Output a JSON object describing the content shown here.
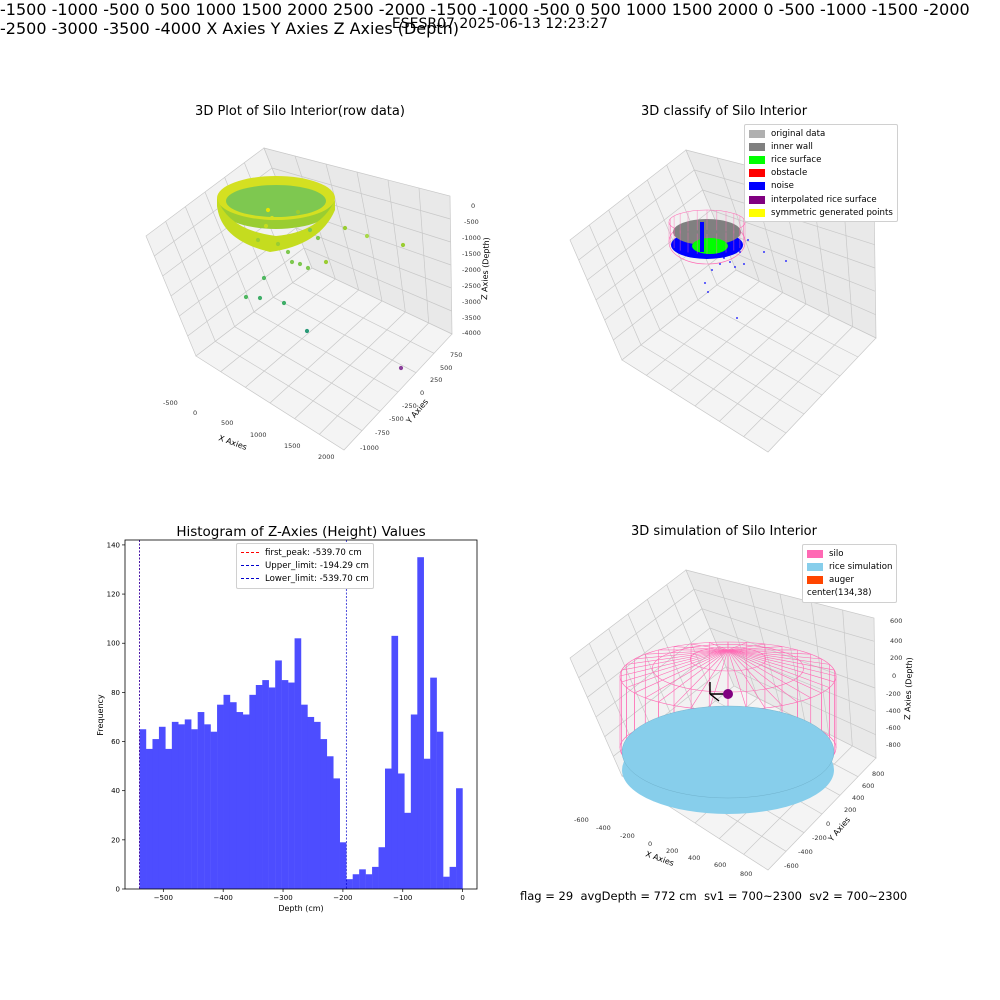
{
  "suptitle": "ESESR07 2025-06-13 12:23:27",
  "footer": {
    "flag": "flag = 29",
    "avg_depth": "avgDepth = 772 cm",
    "sv1": "sv1 = 700~2300",
    "sv2": "sv2 = 700~2300"
  },
  "colors": {
    "hist_bar": "#4d4dff",
    "first_peak": "#ff0000",
    "limits": "#0000cc",
    "silo": "#ff69b4",
    "rice_simulation": "#87ceeb",
    "auger": "#ff4500"
  },
  "panel1": {
    "title": "3D Plot of Silo Interior(row data)",
    "x_label": "X Axies",
    "y_label": "Y Axies",
    "z_label": "Z Axies (Depth)",
    "x_ticks": [
      "-500",
      "0",
      "500",
      "1000",
      "1500",
      "2000"
    ],
    "y_ticks": [
      "-1000",
      "-750",
      "-500",
      "-250",
      "0",
      "250",
      "500",
      "750"
    ],
    "z_ticks": [
      "0",
      "-500",
      "-1000",
      "-1500",
      "-2000",
      "-2500",
      "-3000",
      "-3500",
      "-4000"
    ]
  },
  "panel2": {
    "title": "3D classify of Silo Interior",
    "x_label": "X Axies",
    "y_label": "Y Axies",
    "z_label": "Z Axies (Depth)",
    "x_ticks": [
      "-1500",
      "-1000",
      "-500",
      "0",
      "500",
      "1000",
      "1500",
      "2000",
      "2500"
    ],
    "y_ticks": [
      "-2000",
      "-1500",
      "-1000",
      "-500",
      "0",
      "500",
      "1000",
      "1500",
      "2000"
    ],
    "z_ticks": [
      "0",
      "-500",
      "-1000",
      "-1500",
      "-2000",
      "-2500",
      "-3000",
      "-3500",
      "-4000"
    ],
    "legend": [
      {
        "label": "original data",
        "color": "#b0b0b0"
      },
      {
        "label": "inner wall",
        "color": "#808080"
      },
      {
        "label": "rice surface",
        "color": "#00ff00"
      },
      {
        "label": "obstacle",
        "color": "#ff0000"
      },
      {
        "label": "noise",
        "color": "#0000ff"
      },
      {
        "label": "interpolated rice surface",
        "color": "#800080"
      },
      {
        "label": "symmetric generated points",
        "color": "#ffff00"
      }
    ]
  },
  "panel4": {
    "title": "3D simulation of Silo Interior",
    "x_label": "X Axies",
    "y_label": "Y Axies",
    "z_label": "Z Axies (Depth)",
    "x_ticks": [
      "-600",
      "-400",
      "-200",
      "0",
      "200",
      "400",
      "600",
      "800"
    ],
    "y_ticks": [
      "-600",
      "-400",
      "-200",
      "0",
      "200",
      "400",
      "600",
      "800"
    ],
    "z_ticks": [
      "600",
      "400",
      "200",
      "0",
      "-200",
      "-400",
      "-600",
      "-800"
    ],
    "legend": [
      {
        "label": "silo",
        "color": "#ff69b4"
      },
      {
        "label": "rice simulation",
        "color": "#87ceeb"
      },
      {
        "label": "auger",
        "color": "#ff4500"
      },
      {
        "label": "center(134,38)",
        "color": ""
      }
    ]
  },
  "chart_data": {
    "type": "bar",
    "title": "Histogram of Z-Axies (Height) Values",
    "xlabel": "Depth (cm)",
    "ylabel": "Frequency",
    "xlim": [
      -564,
      24
    ],
    "ylim": [
      0,
      142
    ],
    "x_ticks": [
      -500,
      -400,
      -300,
      -200,
      -100,
      0
    ],
    "y_ticks": [
      0,
      20,
      40,
      60,
      80,
      100,
      120,
      140
    ],
    "bin_start": -539.7,
    "bin_width": 10.79,
    "values": [
      65,
      57,
      61,
      66,
      57,
      68,
      67,
      69,
      65,
      72,
      67,
      64,
      75,
      79,
      76,
      72,
      71,
      79,
      83,
      85,
      82,
      93,
      85,
      84,
      102,
      75,
      70,
      68,
      61,
      54,
      45,
      19,
      4,
      6,
      8,
      6,
      9,
      17,
      49,
      103,
      47,
      31,
      71,
      135,
      53,
      86,
      64,
      5,
      9,
      41
    ],
    "grid": false,
    "legend_position": "top-center",
    "lines": [
      {
        "label": "first_peak: -539.70 cm",
        "x": -539.7,
        "color": "#ff0000"
      },
      {
        "label": "Upper_limit: -194.29 cm",
        "x": -194.29,
        "color": "#0000cc"
      },
      {
        "label": "Lower_limit: -539.70 cm",
        "x": -539.7,
        "color": "#0000cc"
      }
    ]
  }
}
